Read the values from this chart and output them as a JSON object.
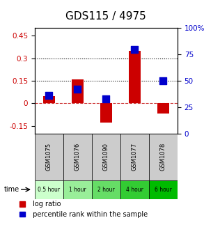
{
  "title": "GDS115 / 4975",
  "samples": [
    "GSM1075",
    "GSM1076",
    "GSM1090",
    "GSM1077",
    "GSM1078"
  ],
  "time_labels": [
    "0.5 hour",
    "1 hour",
    "2 hour",
    "4 hour",
    "6 hour"
  ],
  "time_colors": [
    "#ccffcc",
    "#99ee99",
    "#66dd66",
    "#33cc33",
    "#00bb00"
  ],
  "log_ratios": [
    0.05,
    0.16,
    -0.13,
    0.35,
    -0.07
  ],
  "percentile_ranks": [
    0.36,
    0.42,
    0.33,
    0.8,
    0.5
  ],
  "bar_color": "#cc0000",
  "dot_color": "#0000cc",
  "left_ylim": [
    -0.2,
    0.5
  ],
  "right_ylim": [
    0,
    1.0
  ],
  "left_yticks": [
    -0.15,
    0,
    0.15,
    0.3,
    0.45
  ],
  "right_yticks": [
    0,
    0.25,
    0.5,
    0.75,
    1.0
  ],
  "right_yticklabels": [
    "0",
    "25",
    "50",
    "75",
    "100%"
  ],
  "left_yticklabels": [
    "-0.15",
    "0",
    "0.15",
    "0.3",
    "0.45"
  ],
  "hline_y": [
    0.15,
    0.3
  ],
  "zero_line_color": "#cc3333",
  "bar_width": 0.4,
  "dot_size": 55,
  "bg_color": "#ffffff",
  "plot_bg_color": "#ffffff",
  "sample_bg_color": "#cccccc",
  "title_fontsize": 11,
  "tick_fontsize": 7.5,
  "legend_fontsize": 7
}
